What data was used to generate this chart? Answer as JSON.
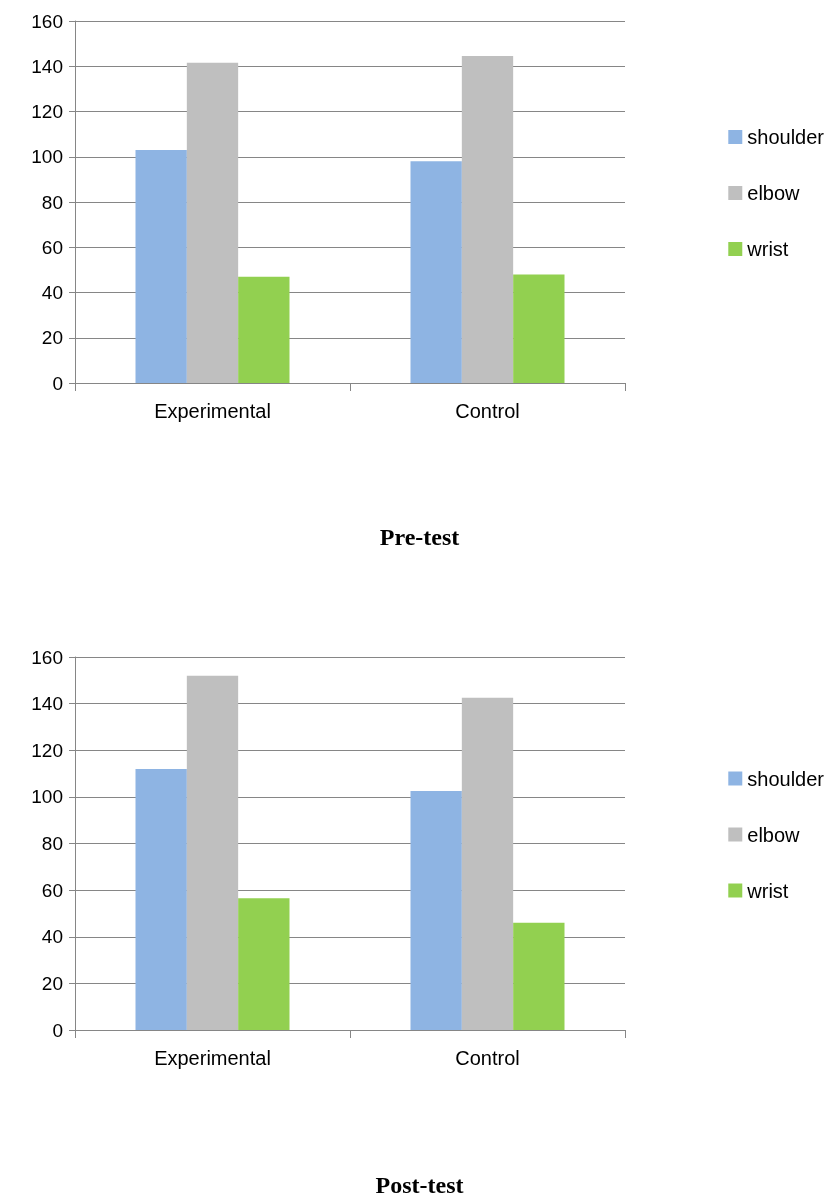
{
  "chart_data": [
    {
      "type": "bar",
      "title": "Pre-test",
      "categories": [
        "Experimental",
        "Control"
      ],
      "series": [
        {
          "name": "shoulder",
          "color": "#8eb4e3",
          "values": [
            103,
            98
          ]
        },
        {
          "name": "elbow",
          "color": "#bfbfbf",
          "values": [
            141.5,
            144.5
          ]
        },
        {
          "name": "wrist",
          "color": "#92d050",
          "values": [
            47,
            48
          ]
        }
      ],
      "ylim": [
        0,
        160
      ],
      "yticks": [
        0,
        20,
        40,
        60,
        80,
        100,
        120,
        140,
        160
      ],
      "grid": "y",
      "legend": "right"
    },
    {
      "type": "bar",
      "title": "Post-test",
      "categories": [
        "Experimental",
        "Control"
      ],
      "series": [
        {
          "name": "shoulder",
          "color": "#8eb4e3",
          "values": [
            112,
            102.5
          ]
        },
        {
          "name": "elbow",
          "color": "#bfbfbf",
          "values": [
            152,
            142.5
          ]
        },
        {
          "name": "wrist",
          "color": "#92d050",
          "values": [
            56.5,
            46
          ]
        }
      ],
      "ylim": [
        0,
        160
      ],
      "yticks": [
        0,
        20,
        40,
        60,
        80,
        100,
        120,
        140,
        160
      ],
      "grid": "y",
      "legend": "right"
    }
  ]
}
